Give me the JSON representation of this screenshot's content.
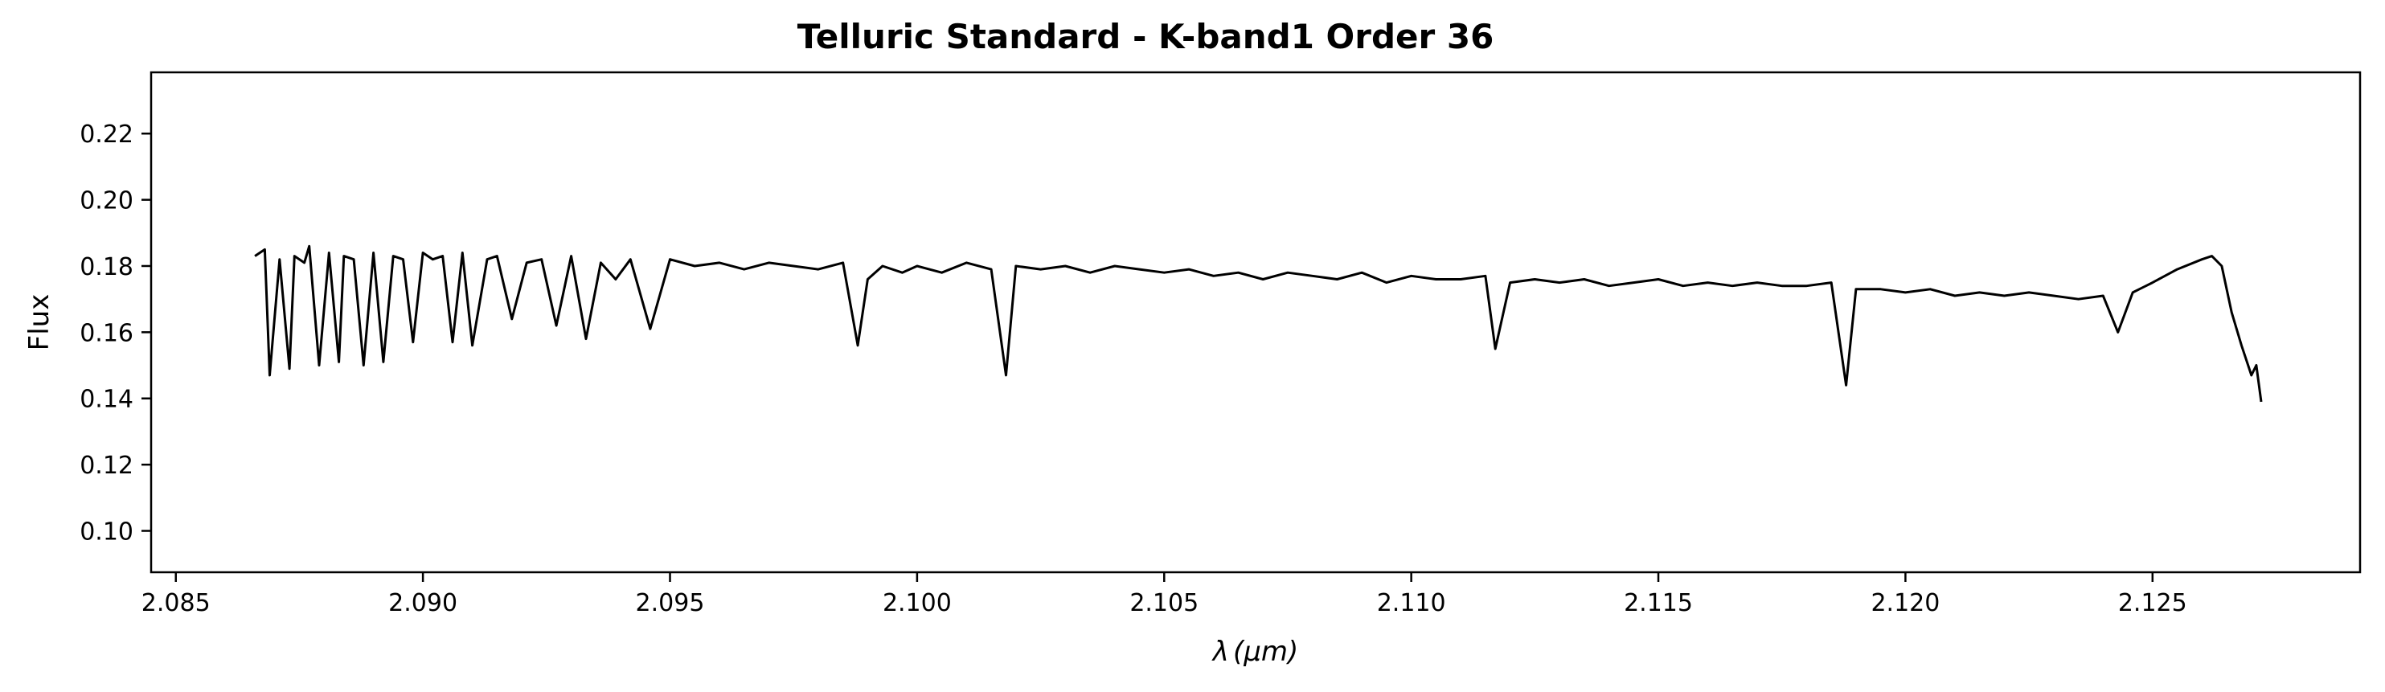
{
  "chart_data": {
    "type": "line",
    "title": "Telluric Standard - K-band1 Order 36",
    "xlabel": "λ (μm)",
    "xlabel_parts": {
      "symbol": "λ",
      "unit": "(μm)"
    },
    "ylabel": "Flux",
    "xlim": [
      2.0845,
      2.1292
    ],
    "ylim": [
      0.0875,
      0.2385
    ],
    "x_ticks": [
      2.085,
      2.09,
      2.095,
      2.1,
      2.105,
      2.11,
      2.115,
      2.12,
      2.125
    ],
    "x_tick_labels": [
      "2.085",
      "2.090",
      "2.095",
      "2.100",
      "2.105",
      "2.110",
      "2.115",
      "2.120",
      "2.125"
    ],
    "y_ticks": [
      0.1,
      0.12,
      0.14,
      0.16,
      0.18,
      0.2,
      0.22
    ],
    "y_tick_labels": [
      "0.10",
      "0.12",
      "0.14",
      "0.16",
      "0.18",
      "0.20",
      "0.22"
    ],
    "grid": false,
    "line_color": "#000000",
    "series": [
      {
        "x": [
          2.0866,
          2.0868,
          2.0869,
          2.0871,
          2.0873,
          2.0874,
          2.0876,
          2.0877,
          2.0879,
          2.0881,
          2.0883,
          2.0884,
          2.0886,
          2.0888,
          2.089,
          2.0892,
          2.0894,
          2.0896,
          2.0898,
          2.09,
          2.0902,
          2.0904,
          2.0906,
          2.0908,
          2.091,
          2.0913,
          2.0915,
          2.0918,
          2.0921,
          2.0924,
          2.0927,
          2.093,
          2.0933,
          2.0936,
          2.0939,
          2.0942,
          2.0946,
          2.095,
          2.0955,
          2.096,
          2.0965,
          2.097,
          2.0975,
          2.098,
          2.0985,
          2.0988,
          2.099,
          2.0993,
          2.0997,
          2.1,
          2.1005,
          2.101,
          2.1015,
          2.1018,
          2.102,
          2.1025,
          2.103,
          2.1035,
          2.104,
          2.1045,
          2.105,
          2.1055,
          2.106,
          2.1065,
          2.107,
          2.1075,
          2.108,
          2.1085,
          2.109,
          2.1095,
          2.11,
          2.1105,
          2.111,
          2.1115,
          2.1117,
          2.112,
          2.1125,
          2.113,
          2.1135,
          2.114,
          2.1145,
          2.115,
          2.1155,
          2.116,
          2.1165,
          2.117,
          2.1175,
          2.118,
          2.1185,
          2.1188,
          2.119,
          2.1195,
          2.12,
          2.1205,
          2.121,
          2.1215,
          2.122,
          2.1225,
          2.123,
          2.1235,
          2.124,
          2.1243,
          2.1246,
          2.125,
          2.1255,
          2.126,
          2.1262,
          2.1264,
          2.1266,
          2.1268,
          2.127,
          2.1271,
          2.1272
        ],
        "y": [
          0.183,
          0.185,
          0.147,
          0.182,
          0.149,
          0.183,
          0.181,
          0.186,
          0.15,
          0.184,
          0.151,
          0.183,
          0.182,
          0.15,
          0.184,
          0.151,
          0.183,
          0.182,
          0.157,
          0.184,
          0.182,
          0.183,
          0.157,
          0.184,
          0.156,
          0.182,
          0.183,
          0.164,
          0.181,
          0.182,
          0.162,
          0.183,
          0.158,
          0.181,
          0.176,
          0.182,
          0.161,
          0.182,
          0.18,
          0.181,
          0.179,
          0.181,
          0.18,
          0.179,
          0.181,
          0.156,
          0.176,
          0.18,
          0.178,
          0.18,
          0.178,
          0.181,
          0.179,
          0.147,
          0.18,
          0.179,
          0.18,
          0.178,
          0.18,
          0.179,
          0.178,
          0.179,
          0.177,
          0.178,
          0.176,
          0.178,
          0.177,
          0.176,
          0.178,
          0.175,
          0.177,
          0.176,
          0.176,
          0.177,
          0.155,
          0.175,
          0.176,
          0.175,
          0.176,
          0.174,
          0.175,
          0.176,
          0.174,
          0.175,
          0.174,
          0.175,
          0.174,
          0.174,
          0.175,
          0.144,
          0.173,
          0.173,
          0.172,
          0.173,
          0.171,
          0.172,
          0.171,
          0.172,
          0.171,
          0.17,
          0.171,
          0.16,
          0.172,
          0.175,
          0.179,
          0.182,
          0.183,
          0.18,
          0.166,
          0.156,
          0.147,
          0.15,
          0.139
        ]
      }
    ]
  }
}
